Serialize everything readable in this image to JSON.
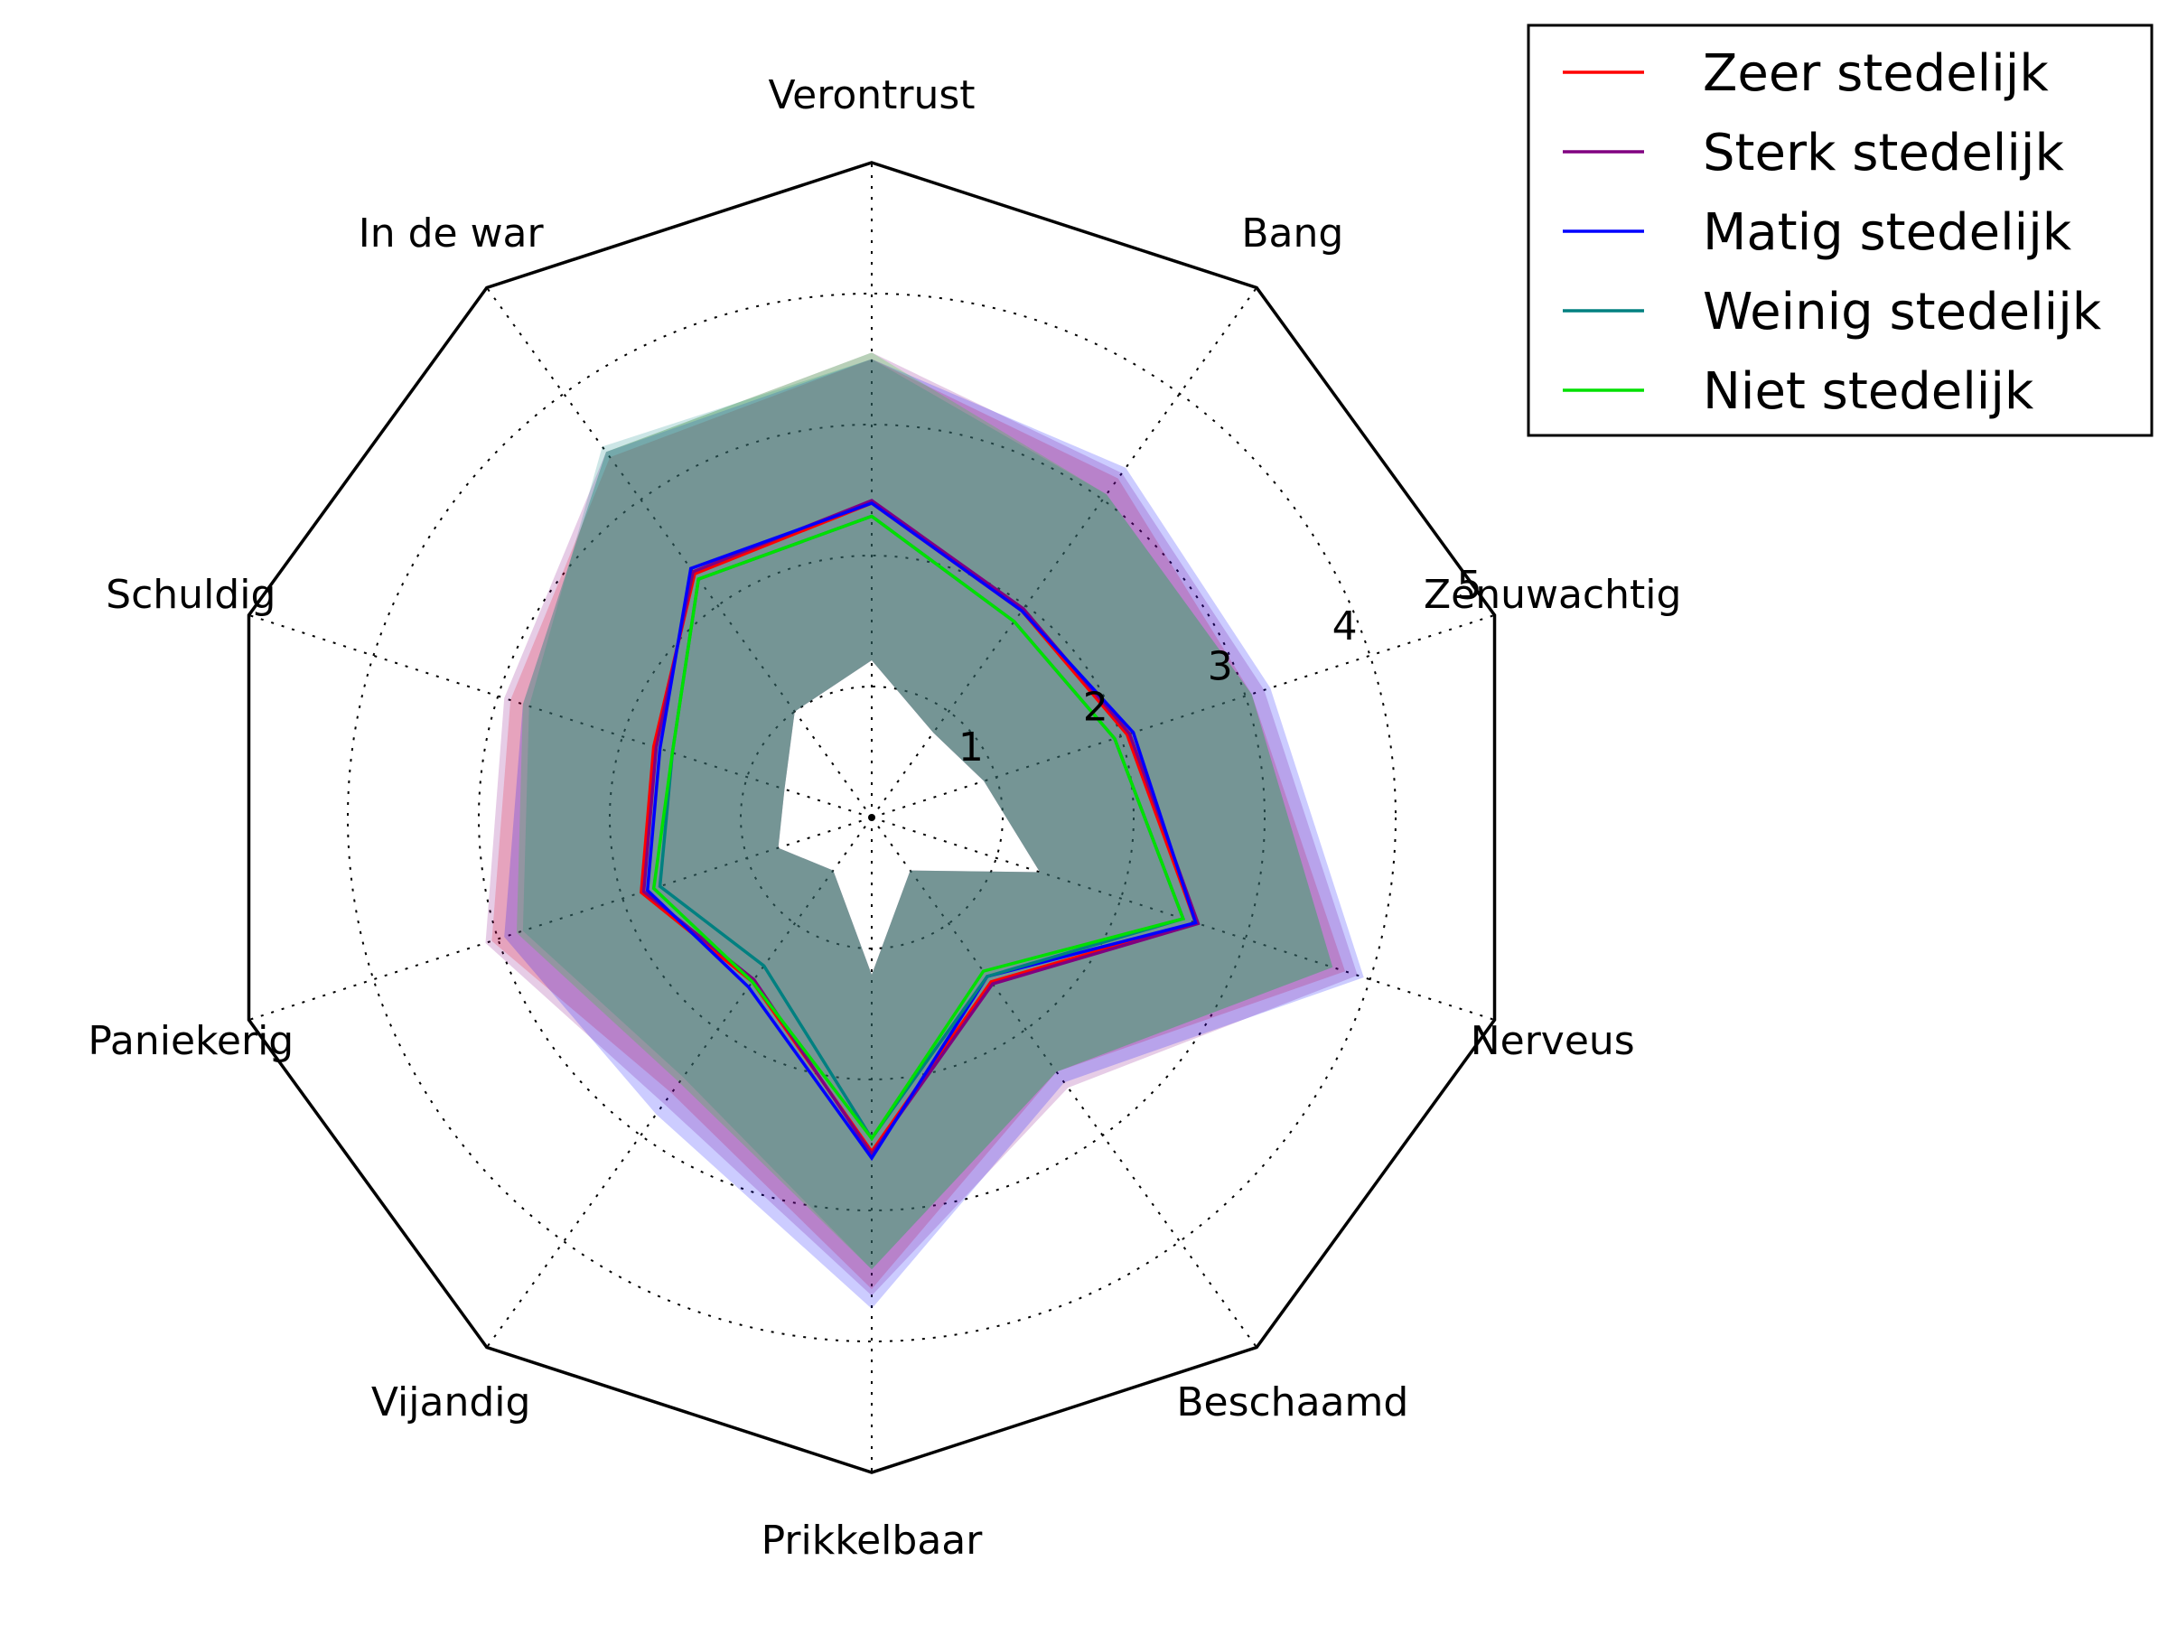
{
  "chart_data": {
    "type": "radar",
    "axes": [
      "Verontrust",
      "Bang",
      "Zenuwachtig",
      "Nerveus",
      "Beschaamd",
      "Prikkelbaar",
      "Vijandig",
      "Paniekerig",
      "Schuldig",
      "In de war"
    ],
    "rlim": [
      0,
      5
    ],
    "rticks": [
      1,
      2,
      3,
      4,
      5
    ],
    "grid": true,
    "legend_position": "top-right",
    "series": [
      {
        "name": "Zeer stedelijk",
        "color": "#ff0000",
        "mean": [
          2.4,
          1.95,
          2.05,
          2.6,
          1.55,
          2.55,
          1.55,
          1.85,
          1.75,
          2.3
        ],
        "upper": [
          3.5,
          3.2,
          3.05,
          3.8,
          2.4,
          3.6,
          2.6,
          3.05,
          2.9,
          3.4
        ],
        "lower": [
          1.2,
          0.8,
          0.9,
          1.35,
          0.5,
          1.2,
          0.5,
          0.75,
          0.7,
          1.0
        ]
      },
      {
        "name": "Sterk stedelijk",
        "color": "#800080",
        "mean": [
          2.42,
          1.97,
          2.07,
          2.62,
          1.57,
          2.57,
          1.53,
          1.83,
          1.73,
          2.32
        ],
        "upper": [
          3.55,
          3.25,
          3.15,
          3.9,
          2.55,
          3.65,
          2.7,
          3.1,
          2.95,
          3.45
        ],
        "lower": [
          1.2,
          0.8,
          0.9,
          1.35,
          0.5,
          1.2,
          0.5,
          0.75,
          0.7,
          1.0
        ]
      },
      {
        "name": "Matig stedelijk",
        "color": "#0000ff",
        "mean": [
          2.4,
          1.95,
          2.1,
          2.6,
          1.5,
          2.6,
          1.6,
          1.8,
          1.7,
          2.35
        ],
        "upper": [
          3.5,
          3.3,
          3.2,
          3.95,
          2.5,
          3.75,
          2.8,
          2.95,
          2.8,
          3.45
        ],
        "lower": [
          1.2,
          0.8,
          0.9,
          1.35,
          0.5,
          1.2,
          0.5,
          0.75,
          0.7,
          1.0
        ]
      },
      {
        "name": "Weinig stedelijk",
        "color": "#008080",
        "mean": [
          2.3,
          1.85,
          1.95,
          2.5,
          1.5,
          2.45,
          1.4,
          1.7,
          1.6,
          2.25
        ],
        "upper": [
          3.5,
          3.05,
          3.05,
          3.7,
          2.4,
          3.45,
          2.45,
          2.8,
          2.75,
          3.5
        ],
        "lower": [
          1.2,
          0.8,
          0.9,
          1.35,
          0.5,
          1.2,
          0.5,
          0.75,
          0.7,
          1.0
        ]
      },
      {
        "name": "Niet stedelijk",
        "color": "#00e000",
        "mean": [
          2.3,
          1.85,
          1.95,
          2.5,
          1.45,
          2.45,
          1.55,
          1.75,
          1.6,
          2.25
        ],
        "upper": [
          3.55,
          3.05,
          3.05,
          3.7,
          2.4,
          3.45,
          2.5,
          2.85,
          2.8,
          3.45
        ],
        "lower": [
          1.2,
          0.8,
          0.9,
          1.35,
          0.5,
          1.2,
          0.5,
          0.75,
          0.7,
          1.0
        ]
      }
    ]
  }
}
